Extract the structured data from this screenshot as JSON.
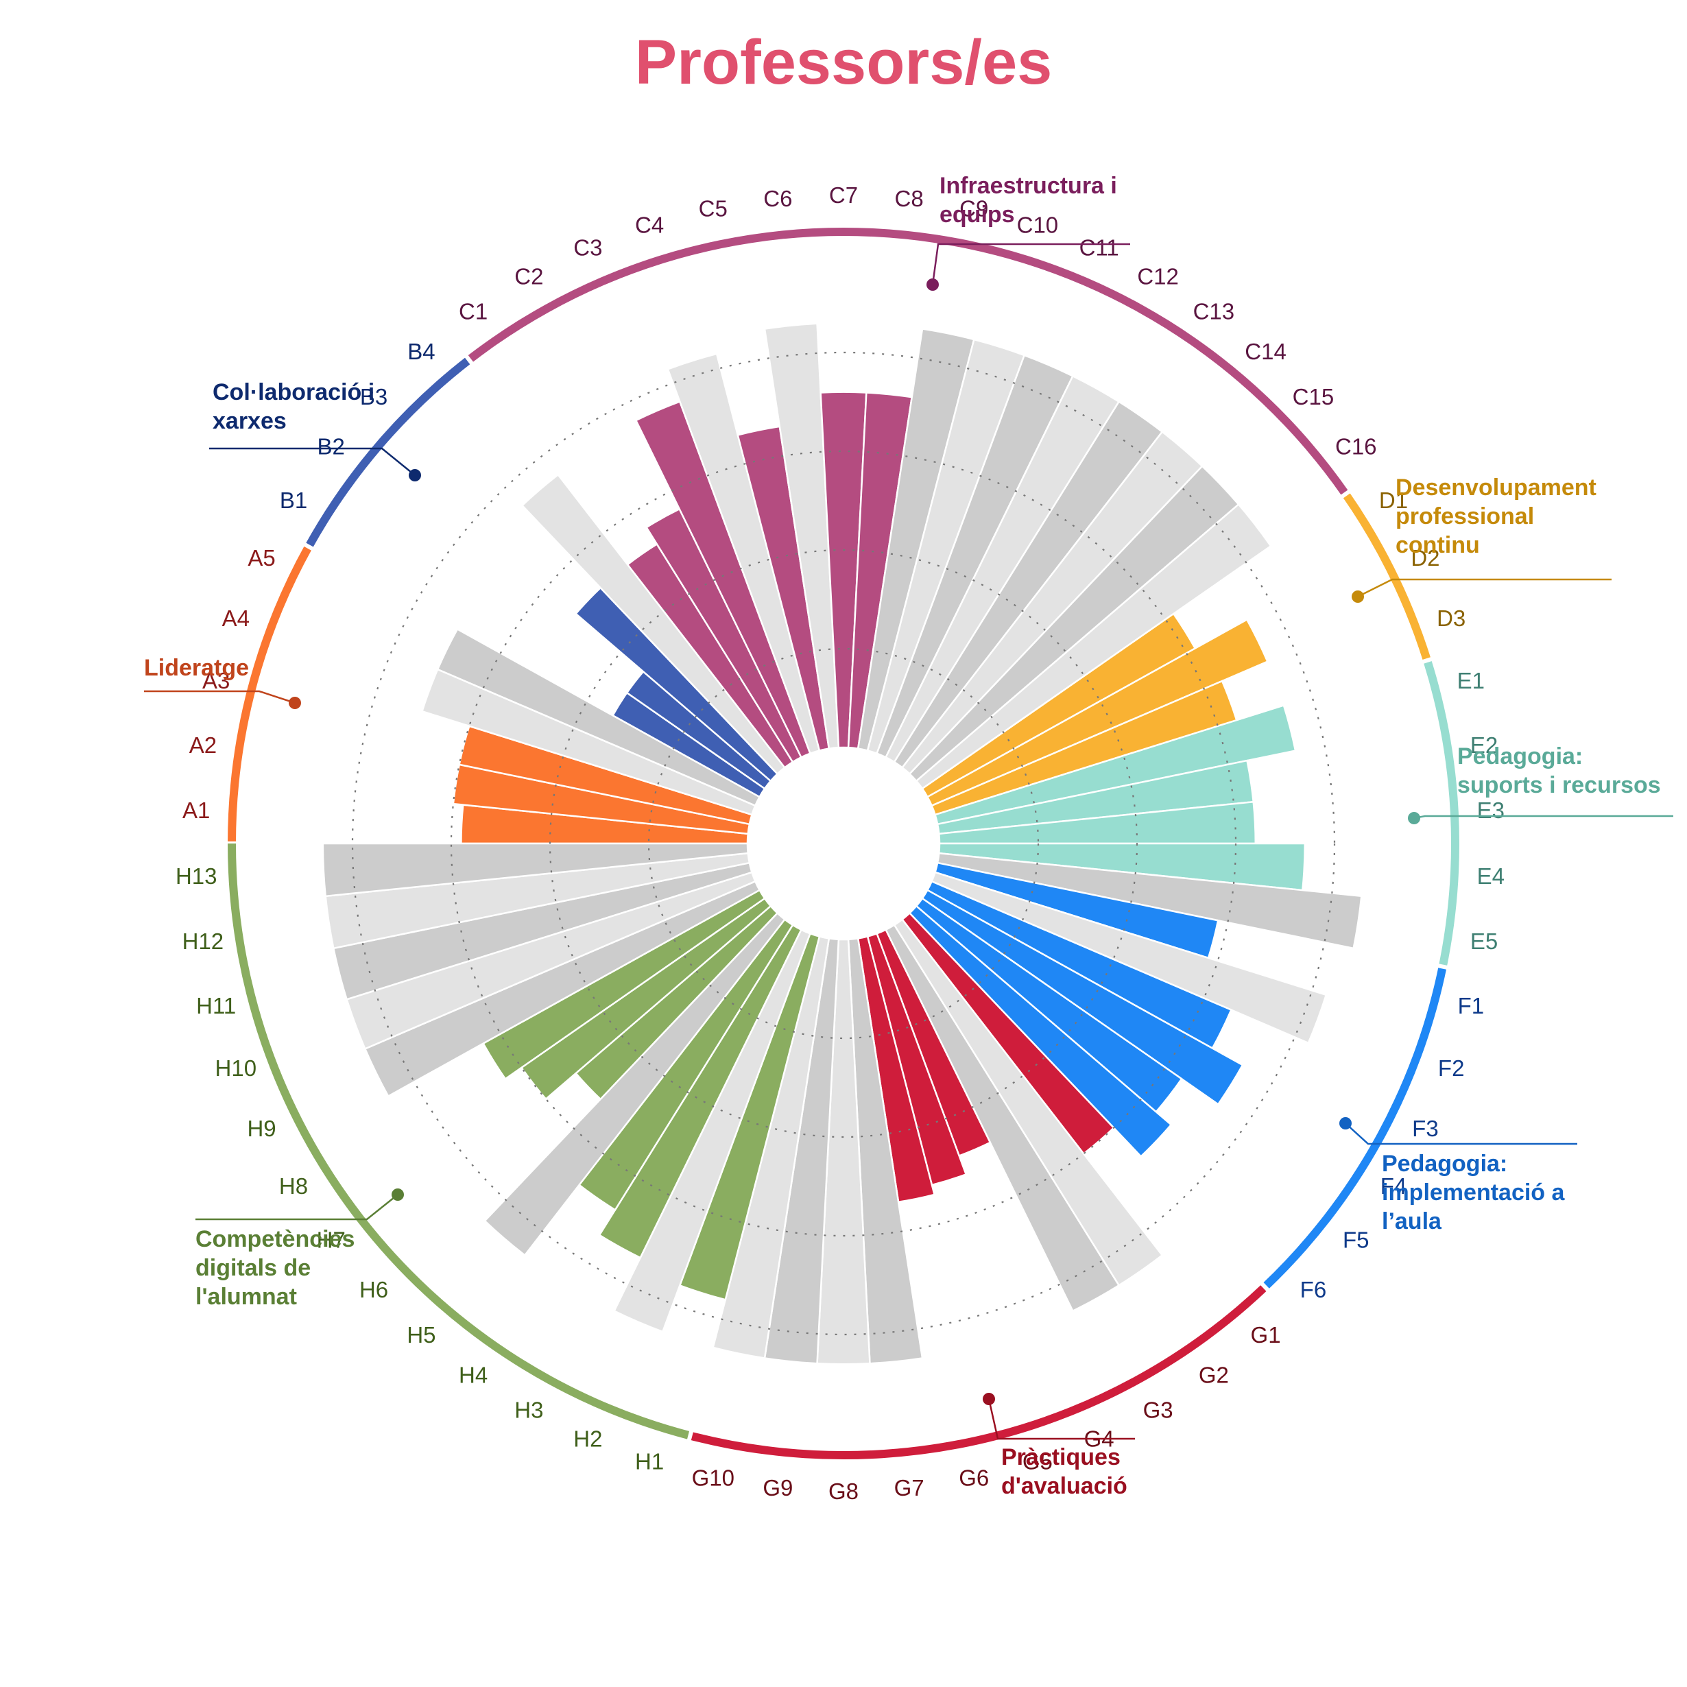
{
  "chart_data": {
    "type": "bar",
    "subtype": "radial-bar",
    "title": "Professors/es",
    "title_color": "#e0506e",
    "value_range": [
      0,
      1
    ],
    "grid": "dotted concentric circles",
    "highlight_rule": "colored bars are the area's highlighted items; gray bars are the rest",
    "gray_colors": [
      "#cccccc",
      "#e3e3e3"
    ],
    "areas": [
      {
        "id": "A",
        "name": "Lideratge",
        "color": "#fb7630",
        "label_color": "#c0441c",
        "tick_color": "#8b1a1a",
        "items": [
          {
            "label": "A1",
            "value": 0.58,
            "highlighted": true
          },
          {
            "label": "A2",
            "value": 0.6,
            "highlighted": true
          },
          {
            "label": "A3",
            "value": 0.6,
            "highlighted": true
          },
          {
            "label": "A4",
            "value": 0.7,
            "highlighted": false
          },
          {
            "label": "A5",
            "value": 0.7,
            "highlighted": false
          }
        ]
      },
      {
        "id": "B",
        "name": "Col·laboració i xarxes",
        "color": "#3f5fb3",
        "label_color": "#0e2a6e",
        "tick_color": "#0e2a6e",
        "items": [
          {
            "label": "B1",
            "value": 0.34,
            "highlighted": true
          },
          {
            "label": "B2",
            "value": 0.34,
            "highlighted": true
          },
          {
            "label": "B3",
            "value": 0.52,
            "highlighted": true
          },
          {
            "label": "B4",
            "value": 0.75,
            "highlighted": false
          }
        ]
      },
      {
        "id": "C",
        "name": "Infraestructura i equips",
        "color": "#b44c80",
        "label_color": "#7a1e5c",
        "tick_color": "#5a1540",
        "items": [
          {
            "label": "C1",
            "value": 0.52,
            "highlighted": true
          },
          {
            "label": "C2",
            "value": 0.56,
            "highlighted": true
          },
          {
            "label": "C3",
            "value": 0.76,
            "highlighted": true
          },
          {
            "label": "C4",
            "value": 0.83,
            "highlighted": false
          },
          {
            "label": "C5",
            "value": 0.66,
            "highlighted": true
          },
          {
            "label": "C6",
            "value": 0.86,
            "highlighted": false
          },
          {
            "label": "C7",
            "value": 0.72,
            "highlighted": true
          },
          {
            "label": "C8",
            "value": 0.72,
            "highlighted": true
          },
          {
            "label": "C9",
            "value": 0.86,
            "highlighted": false
          },
          {
            "label": "C10",
            "value": 0.86,
            "highlighted": false
          },
          {
            "label": "C11",
            "value": 0.86,
            "highlighted": false
          },
          {
            "label": "C12",
            "value": 0.86,
            "highlighted": false
          },
          {
            "label": "C13",
            "value": 0.86,
            "highlighted": false
          },
          {
            "label": "C14",
            "value": 0.86,
            "highlighted": false
          },
          {
            "label": "C15",
            "value": 0.86,
            "highlighted": false
          },
          {
            "label": "C16",
            "value": 0.86,
            "highlighted": false
          }
        ]
      },
      {
        "id": "D",
        "name": "Desenvolupament professional continu",
        "color": "#f9b233",
        "label_color": "#c58a0a",
        "tick_color": "#8a6200",
        "items": [
          {
            "label": "D1",
            "value": 0.62,
            "highlighted": true
          },
          {
            "label": "D2",
            "value": 0.74,
            "highlighted": true
          },
          {
            "label": "D3",
            "value": 0.64,
            "highlighted": true
          }
        ]
      },
      {
        "id": "E",
        "name": "Pedagogia: suports i recursos",
        "color": "#97ddd0",
        "label_color": "#5aaa98",
        "tick_color": "#3e7f72",
        "items": [
          {
            "label": "E1",
            "value": 0.74,
            "highlighted": true
          },
          {
            "label": "E2",
            "value": 0.64,
            "highlighted": true
          },
          {
            "label": "E3",
            "value": 0.64,
            "highlighted": true
          },
          {
            "label": "E4",
            "value": 0.74,
            "highlighted": true
          },
          {
            "label": "E5",
            "value": 0.86,
            "highlighted": false
          }
        ]
      },
      {
        "id": "F",
        "name": "Pedagogia: implementació a l’aula",
        "color": "#1f87f5",
        "label_color": "#1262c2",
        "tick_color": "#0e3a8a",
        "items": [
          {
            "label": "F1",
            "value": 0.58,
            "highlighted": true
          },
          {
            "label": "F2",
            "value": 0.83,
            "highlighted": false
          },
          {
            "label": "F3",
            "value": 0.66,
            "highlighted": true
          },
          {
            "label": "F4",
            "value": 0.73,
            "highlighted": true
          },
          {
            "label": "F5",
            "value": 0.64,
            "highlighted": true
          },
          {
            "label": "F6",
            "value": 0.68,
            "highlighted": true
          }
        ]
      },
      {
        "id": "G",
        "name": "Pràctiques d'avaluació",
        "color": "#cf1d3b",
        "label_color": "#9a0f20",
        "tick_color": "#6a0e18",
        "items": [
          {
            "label": "G1",
            "value": 0.6,
            "highlighted": true
          },
          {
            "label": "G2",
            "value": 0.86,
            "highlighted": false
          },
          {
            "label": "G3",
            "value": 0.86,
            "highlighted": false
          },
          {
            "label": "G4",
            "value": 0.48,
            "highlighted": true
          },
          {
            "label": "G5",
            "value": 0.52,
            "highlighted": true
          },
          {
            "label": "G6",
            "value": 0.54,
            "highlighted": true
          },
          {
            "label": "G7",
            "value": 0.86,
            "highlighted": false
          },
          {
            "label": "G8",
            "value": 0.86,
            "highlighted": false
          },
          {
            "label": "G9",
            "value": 0.86,
            "highlighted": false
          },
          {
            "label": "G10",
            "value": 0.86,
            "highlighted": false
          }
        ]
      },
      {
        "id": "H",
        "name": "Competències digitals de l'alumnat",
        "color": "#8aad60",
        "label_color": "#5a7f35",
        "tick_color": "#3f5f1a",
        "items": [
          {
            "label": "H1",
            "value": 0.76,
            "highlighted": true
          },
          {
            "label": "H2",
            "value": 0.86,
            "highlighted": false
          },
          {
            "label": "H3",
            "value": 0.74,
            "highlighted": true
          },
          {
            "label": "H4",
            "value": 0.68,
            "highlighted": true
          },
          {
            "label": "H5",
            "value": 0.86,
            "highlighted": false
          },
          {
            "label": "H6",
            "value": 0.52,
            "highlighted": true
          },
          {
            "label": "H7",
            "value": 0.6,
            "highlighted": true
          },
          {
            "label": "H8",
            "value": 0.64,
            "highlighted": true
          },
          {
            "label": "H9",
            "value": 0.86,
            "highlighted": false
          },
          {
            "label": "H10",
            "value": 0.86,
            "highlighted": false
          },
          {
            "label": "H11",
            "value": 0.86,
            "highlighted": false
          },
          {
            "label": "H12",
            "value": 0.86,
            "highlighted": false
          },
          {
            "label": "H13",
            "value": 0.86,
            "highlighted": false
          }
        ]
      }
    ]
  }
}
